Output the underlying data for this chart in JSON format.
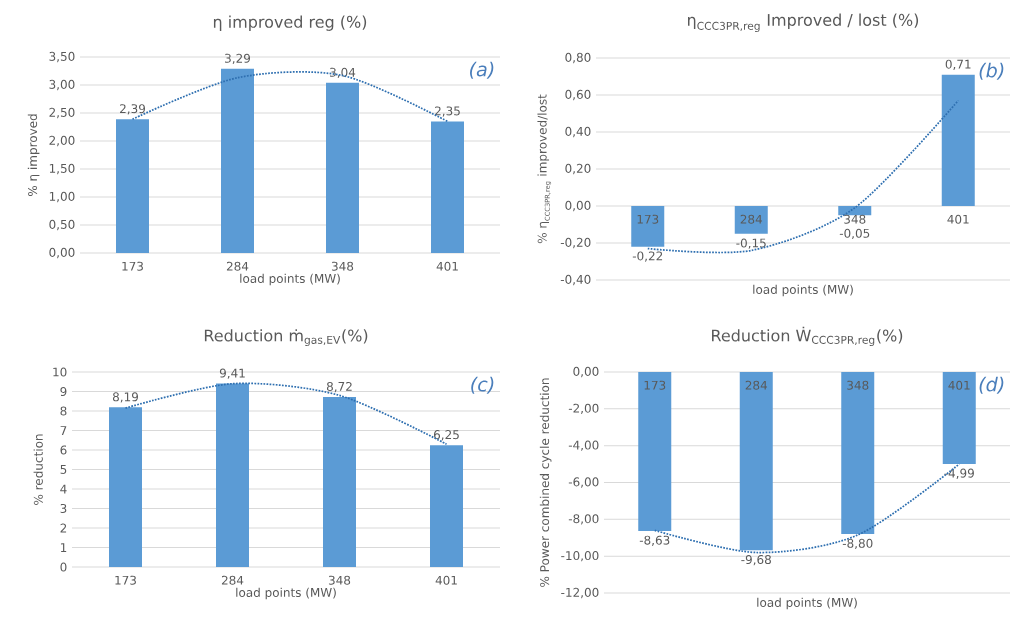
{
  "chart_data": [
    {
      "type": "bar",
      "title": "η improved reg (%)",
      "xlabel": "load points (MW)",
      "ylabel": "% η improved",
      "annotations": [
        "(a)"
      ],
      "categories": [
        "173",
        "284",
        "348",
        "401"
      ],
      "series": [
        {
          "color": "#5b9bd5",
          "values": [
            2.39,
            3.29,
            3.04,
            2.35
          ],
          "value_labels": [
            "2,39",
            "3,29",
            "3,04",
            "2,35"
          ]
        },
        {
          "type": "line",
          "color": "#2e6fb0",
          "line_style": "dotted",
          "values": [
            2.39,
            3.13,
            3.17,
            2.35
          ]
        }
      ],
      "ylim": [
        0,
        3.5
      ],
      "yticks": [
        {
          "value": 0,
          "label": "0,00"
        },
        {
          "value": 0.5,
          "label": "0,50"
        },
        {
          "value": 1,
          "label": "1,00"
        },
        {
          "value": 1.5,
          "label": "1,50"
        },
        {
          "value": 2,
          "label": "2,00"
        },
        {
          "value": 2.5,
          "label": "2,50"
        },
        {
          "value": 3,
          "label": "3,00"
        },
        {
          "value": 3.5,
          "label": "3,50"
        }
      ],
      "grid": "y"
    },
    {
      "type": "bar",
      "title": "\\mbox{η}_{\\mbox{\\footnotesize CCC3PR,reg}}\\mbox{ Improved / lost (\\%)}",
      "xlabel": "load points (MW)",
      "ylabel": "\\mbox{\\% η}_{\\mbox{\\tiny CCC3PR,reg}}\\mbox{ improved/lost}",
      "annotations": [
        "(b)"
      ],
      "categories": [
        "173",
        "284",
        "348",
        "401"
      ],
      "series": [
        {
          "color": "#5b9bd5",
          "values": [
            -0.22,
            -0.15,
            -0.05,
            0.71
          ],
          "value_labels": [
            "-0,22",
            "-0,15",
            "-0,05",
            "0,71"
          ]
        },
        {
          "type": "line",
          "color": "#2e6fb0",
          "line_style": "dotted",
          "values": [
            -0.23,
            -0.24,
            -0.01,
            0.57
          ]
        }
      ],
      "ylim": [
        -0.4,
        0.8
      ],
      "yticks": [
        {
          "value": -0.4,
          "label": "-0,40"
        },
        {
          "value": -0.2,
          "label": "-0,20"
        },
        {
          "value": 0,
          "label": "0,00"
        },
        {
          "value": 0.2,
          "label": "0,20"
        },
        {
          "value": 0.4,
          "label": "0,40"
        },
        {
          "value": 0.6,
          "label": "0,60"
        },
        {
          "value": 0.8,
          "label": "0,80"
        }
      ],
      "grid": "y"
    },
    {
      "type": "bar",
      "title": "\\mbox{Reduction ṁ}_{\\mbox{\\footnotesize gas,EV}}\\mbox{(\\%)}",
      "xlabel": "load points (MW)",
      "ylabel": "% reduction",
      "annotations": [
        "(c)"
      ],
      "categories": [
        "173",
        "284",
        "348",
        "401"
      ],
      "series": [
        {
          "color": "#5b9bd5",
          "values": [
            8.19,
            9.41,
            8.72,
            6.25
          ],
          "value_labels": [
            "8,19",
            "9,41",
            "8,72",
            "6,25"
          ]
        },
        {
          "type": "line",
          "color": "#2e6fb0",
          "line_style": "dotted",
          "values": [
            8.15,
            9.4,
            8.8,
            6.3
          ]
        }
      ],
      "ylim": [
        0,
        10
      ],
      "yticks": [
        0,
        1,
        2,
        3,
        4,
        5,
        6,
        7,
        8,
        9,
        10
      ],
      "grid": "y"
    },
    {
      "type": "bar",
      "title": "\\mbox{Reduction Ẇ}_{\\mbox{\\footnotesize CCC3PR,reg}}\\mbox{(\\%)}",
      "xlabel": "load points (MW)",
      "ylabel": "% Power combined cycle reduction",
      "annotations": [
        "(d)"
      ],
      "categories": [
        "173",
        "284",
        "348",
        "401"
      ],
      "series": [
        {
          "color": "#5b9bd5",
          "values": [
            -8.63,
            -9.68,
            -8.8,
            -4.99
          ],
          "value_labels": [
            "-8,63",
            "-9,68",
            "-8,80",
            "-4,99"
          ]
        },
        {
          "type": "line",
          "color": "#2e6fb0",
          "line_style": "dotted",
          "values": [
            -8.6,
            -9.8,
            -8.85,
            -5.0
          ]
        }
      ],
      "ylim": [
        -12,
        0
      ],
      "yticks": [
        {
          "value": -12,
          "label": "-12,00"
        },
        {
          "value": -10,
          "label": "-10,00"
        },
        {
          "value": -8,
          "label": "-8,00"
        },
        {
          "value": -6,
          "label": "-6,00"
        },
        {
          "value": -4,
          "label": "-4,00"
        },
        {
          "value": -2,
          "label": "-2,00"
        },
        {
          "value": 0,
          "label": "0,00"
        }
      ],
      "grid": "y"
    }
  ]
}
